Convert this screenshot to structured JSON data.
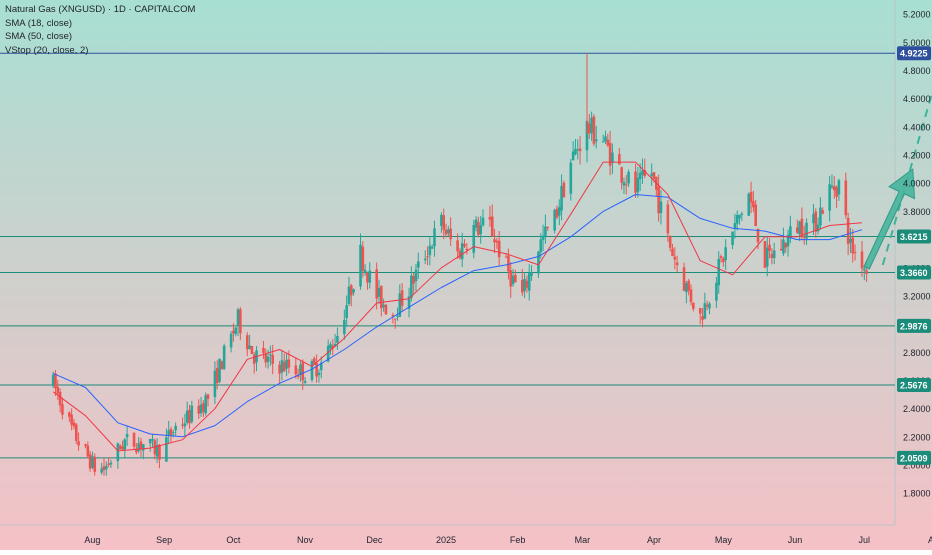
{
  "legend": {
    "title": "Natural Gas (XNGUSD) · 1D · CAPITALCOM",
    "sma18": "SMA (18, close)",
    "sma50": "SMA (50, close)",
    "vstop": "VStop (20, close, 2)"
  },
  "colors": {
    "bg_top": "#a8dfd3",
    "bg_bottom": "#f5c1c6",
    "up": "#26a69a",
    "down": "#ef5350",
    "sma18": "#f23645",
    "sma50": "#2962ff",
    "levels": "#1b8b7a",
    "top_level": "#2e4f9e",
    "arrow": "#3fb39a"
  },
  "chart_data": {
    "type": "candlestick",
    "ylim": [
      1.65,
      5.3
    ],
    "y_ticks": [
      "5.2000",
      "5.0000",
      "4.8000",
      "4.6000",
      "4.4000",
      "4.2000",
      "4.0000",
      "3.8000",
      "3.6000",
      "3.4000",
      "3.2000",
      "3.0000",
      "2.8000",
      "2.6000",
      "2.4000",
      "2.2000",
      "2.0000",
      "1.8000"
    ],
    "x_ticks": [
      "Aug",
      "Sep",
      "Oct",
      "Nov",
      "Dec",
      "2025",
      "Feb",
      "Mar",
      "Apr",
      "May",
      "Jun",
      "Jul",
      "Aug"
    ],
    "levels": [
      {
        "value": 4.9225,
        "label": "4.9225"
      },
      {
        "value": 3.6215,
        "label": "3.6215"
      },
      {
        "value": 3.366,
        "label": "3.3660"
      },
      {
        "value": 2.9876,
        "label": "2.9876"
      },
      {
        "value": 2.5676,
        "label": "2.5676"
      },
      {
        "value": 2.0509,
        "label": "2.0509"
      }
    ],
    "price_path": [
      [
        "2024-07-15",
        2.58
      ],
      [
        "2024-07-24",
        2.22
      ],
      [
        "2024-08-02",
        1.98
      ],
      [
        "2024-08-06",
        1.97
      ],
      [
        "2024-08-15",
        2.17
      ],
      [
        "2024-08-23",
        2.15
      ],
      [
        "2024-08-30",
        2.1
      ],
      [
        "2024-09-06",
        2.27
      ],
      [
        "2024-09-13",
        2.36
      ],
      [
        "2024-09-20",
        2.48
      ],
      [
        "2024-09-27",
        2.78
      ],
      [
        "2024-10-03",
        3.03
      ],
      [
        "2024-10-10",
        2.78
      ],
      [
        "2024-10-18",
        2.72
      ],
      [
        "2024-10-25",
        2.7
      ],
      [
        "2024-11-01",
        2.65
      ],
      [
        "2024-11-08",
        2.72
      ],
      [
        "2024-11-15",
        2.93
      ],
      [
        "2024-11-20",
        3.2
      ],
      [
        "2024-11-25",
        3.5
      ],
      [
        "2024-12-02",
        3.2
      ],
      [
        "2024-12-09",
        3.08
      ],
      [
        "2024-12-16",
        3.25
      ],
      [
        "2024-12-23",
        3.5
      ],
      [
        "2024-12-30",
        3.72
      ],
      [
        "2025-01-06",
        3.5
      ],
      [
        "2025-01-13",
        3.68
      ],
      [
        "2025-01-20",
        3.7
      ],
      [
        "2025-01-27",
        3.4
      ],
      [
        "2025-02-03",
        3.2
      ],
      [
        "2025-02-10",
        3.55
      ],
      [
        "2025-02-17",
        3.75
      ],
      [
        "2025-02-24",
        4.15
      ],
      [
        "2025-03-03",
        4.4
      ],
      [
        "2025-03-10",
        4.3
      ],
      [
        "2025-03-17",
        4.1
      ],
      [
        "2025-03-24",
        3.95
      ],
      [
        "2025-03-31",
        4.08
      ],
      [
        "2025-04-07",
        3.6
      ],
      [
        "2025-04-14",
        3.3
      ],
      [
        "2025-04-21",
        3.05
      ],
      [
        "2025-04-28",
        3.35
      ],
      [
        "2025-05-05",
        3.65
      ],
      [
        "2025-05-12",
        3.92
      ],
      [
        "2025-05-19",
        3.45
      ],
      [
        "2025-05-26",
        3.55
      ],
      [
        "2025-06-02",
        3.7
      ],
      [
        "2025-06-09",
        3.7
      ],
      [
        "2025-06-16",
        3.95
      ],
      [
        "2025-06-20",
        4.0
      ],
      [
        "2025-06-25",
        3.55
      ],
      [
        "2025-06-30",
        3.45
      ],
      [
        "2025-07-02",
        3.38
      ]
    ],
    "sma50_path": [
      [
        "2024-07-15",
        2.65
      ],
      [
        "2024-07-29",
        2.55
      ],
      [
        "2024-08-12",
        2.3
      ],
      [
        "2024-08-26",
        2.22
      ],
      [
        "2024-09-09",
        2.2
      ],
      [
        "2024-09-23",
        2.28
      ],
      [
        "2024-10-07",
        2.45
      ],
      [
        "2024-10-21",
        2.58
      ],
      [
        "2024-11-04",
        2.68
      ],
      [
        "2024-11-18",
        2.82
      ],
      [
        "2024-12-02",
        2.98
      ],
      [
        "2024-12-16",
        3.12
      ],
      [
        "2024-12-30",
        3.26
      ],
      [
        "2025-01-13",
        3.38
      ],
      [
        "2025-01-27",
        3.42
      ],
      [
        "2025-02-10",
        3.48
      ],
      [
        "2025-02-24",
        3.62
      ],
      [
        "2025-03-10",
        3.8
      ],
      [
        "2025-03-24",
        3.92
      ],
      [
        "2025-04-07",
        3.9
      ],
      [
        "2025-04-21",
        3.75
      ],
      [
        "2025-05-05",
        3.68
      ],
      [
        "2025-05-19",
        3.66
      ],
      [
        "2025-06-02",
        3.6
      ],
      [
        "2025-06-16",
        3.6
      ],
      [
        "2025-06-30",
        3.67
      ]
    ],
    "sma18_path": [
      [
        "2024-07-15",
        2.52
      ],
      [
        "2024-07-29",
        2.35
      ],
      [
        "2024-08-12",
        2.1
      ],
      [
        "2024-08-26",
        2.12
      ],
      [
        "2024-09-09",
        2.18
      ],
      [
        "2024-09-23",
        2.4
      ],
      [
        "2024-10-07",
        2.75
      ],
      [
        "2024-10-21",
        2.82
      ],
      [
        "2024-11-04",
        2.7
      ],
      [
        "2024-11-18",
        2.9
      ],
      [
        "2024-12-02",
        3.15
      ],
      [
        "2024-12-16",
        3.18
      ],
      [
        "2024-12-30",
        3.4
      ],
      [
        "2025-01-13",
        3.55
      ],
      [
        "2025-01-27",
        3.5
      ],
      [
        "2025-02-10",
        3.42
      ],
      [
        "2025-02-24",
        3.78
      ],
      [
        "2025-03-10",
        4.15
      ],
      [
        "2025-03-24",
        4.15
      ],
      [
        "2025-04-07",
        3.92
      ],
      [
        "2025-04-21",
        3.45
      ],
      [
        "2025-05-05",
        3.35
      ],
      [
        "2025-05-19",
        3.62
      ],
      [
        "2025-06-02",
        3.62
      ],
      [
        "2025-06-16",
        3.7
      ],
      [
        "2025-06-30",
        3.72
      ]
    ],
    "forecast_arrow": {
      "from": [
        "2025-07-02",
        3.4
      ],
      "to": [
        "2025-07-22",
        4.1
      ]
    },
    "forecast_dashed": {
      "from": [
        "2025-07-09",
        3.42
      ],
      "to": [
        "2025-08-03",
        4.85
      ]
    },
    "grid": false,
    "legend_position": "top-left"
  }
}
